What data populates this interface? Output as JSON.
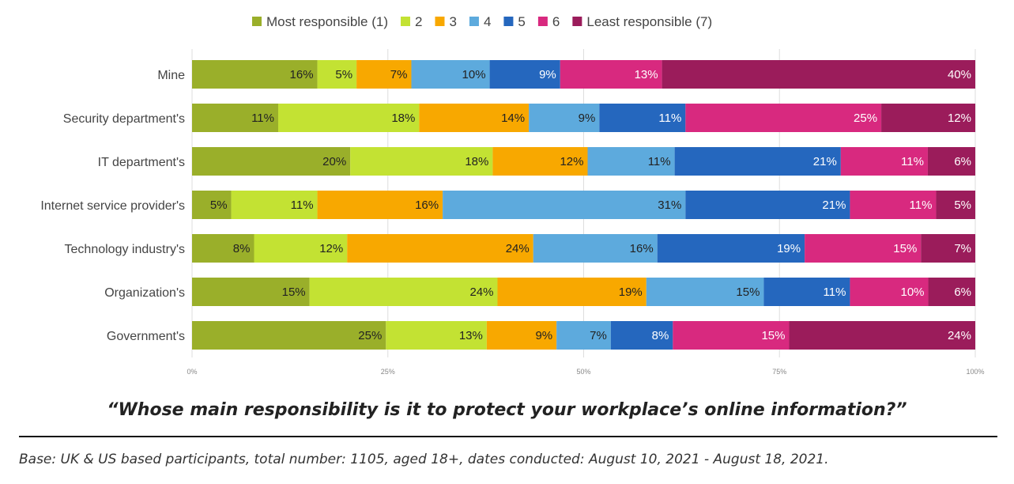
{
  "chart_data": {
    "type": "bar",
    "orientation": "horizontal",
    "stacked": true,
    "normalized": true,
    "categories": [
      "Mine",
      "Security department's",
      "IT department's",
      "Internet service provider's",
      "Technology industry's",
      "Organization's",
      "Government's"
    ],
    "series": [
      {
        "name": "Most responsible (1)",
        "color": "#9aaf2a",
        "values": [
          16,
          11,
          20,
          5,
          8,
          15,
          25
        ],
        "labels": [
          "16%",
          "11%",
          "20%",
          "5%",
          "8%",
          "15%",
          "25%"
        ]
      },
      {
        "name": "2",
        "color": "#c3e233",
        "values": [
          5,
          18,
          18,
          11,
          12,
          24,
          13
        ],
        "labels": [
          "5%",
          "18%",
          "18%",
          "11%",
          "12%",
          "24%",
          "13%"
        ]
      },
      {
        "name": "3",
        "color": "#f8a800",
        "values": [
          7,
          14,
          12,
          16,
          24,
          19,
          9
        ],
        "labels": [
          "7%",
          "14%",
          "12%",
          "16%",
          "24%",
          "19%",
          "9%"
        ]
      },
      {
        "name": "4",
        "color": "#5daadd",
        "values": [
          10,
          9,
          11,
          31,
          16,
          15,
          7
        ],
        "labels": [
          "10%",
          "9%",
          "11%",
          "31%",
          "16%",
          "15%",
          "7%"
        ]
      },
      {
        "name": "5",
        "color": "#2567be",
        "values": [
          9,
          11,
          21,
          21,
          19,
          11,
          8
        ],
        "labels": [
          "9%",
          "11%",
          "21%",
          "21%",
          "19%",
          "11%",
          "8%"
        ]
      },
      {
        "name": "6",
        "color": "#d8297f",
        "values": [
          13,
          25,
          11,
          11,
          15,
          10,
          15
        ],
        "labels": [
          "13%",
          "25%",
          "11%",
          "11%",
          "15%",
          "10%",
          "15%"
        ]
      },
      {
        "name": "Least responsible (7)",
        "color": "#9b1c5b",
        "values": [
          40,
          12,
          6,
          5,
          7,
          6,
          24
        ],
        "labels": [
          "40%",
          "12%",
          "6%",
          "5%",
          "7%",
          "6%",
          "24%"
        ]
      }
    ],
    "xlim": [
      0,
      100
    ],
    "x_ticks": [
      "0%",
      "25%",
      "50%",
      "75%",
      "100%"
    ],
    "grid": true,
    "legend_position": "top",
    "title": "“Whose main responsibility is it to protect your workplace’s online information?”",
    "xlabel": "",
    "ylabel": ""
  },
  "footnote": "Base: UK & US based participants, total number: 1105, aged 18+, dates conducted: August 10, 2021 - August 18, 2021."
}
